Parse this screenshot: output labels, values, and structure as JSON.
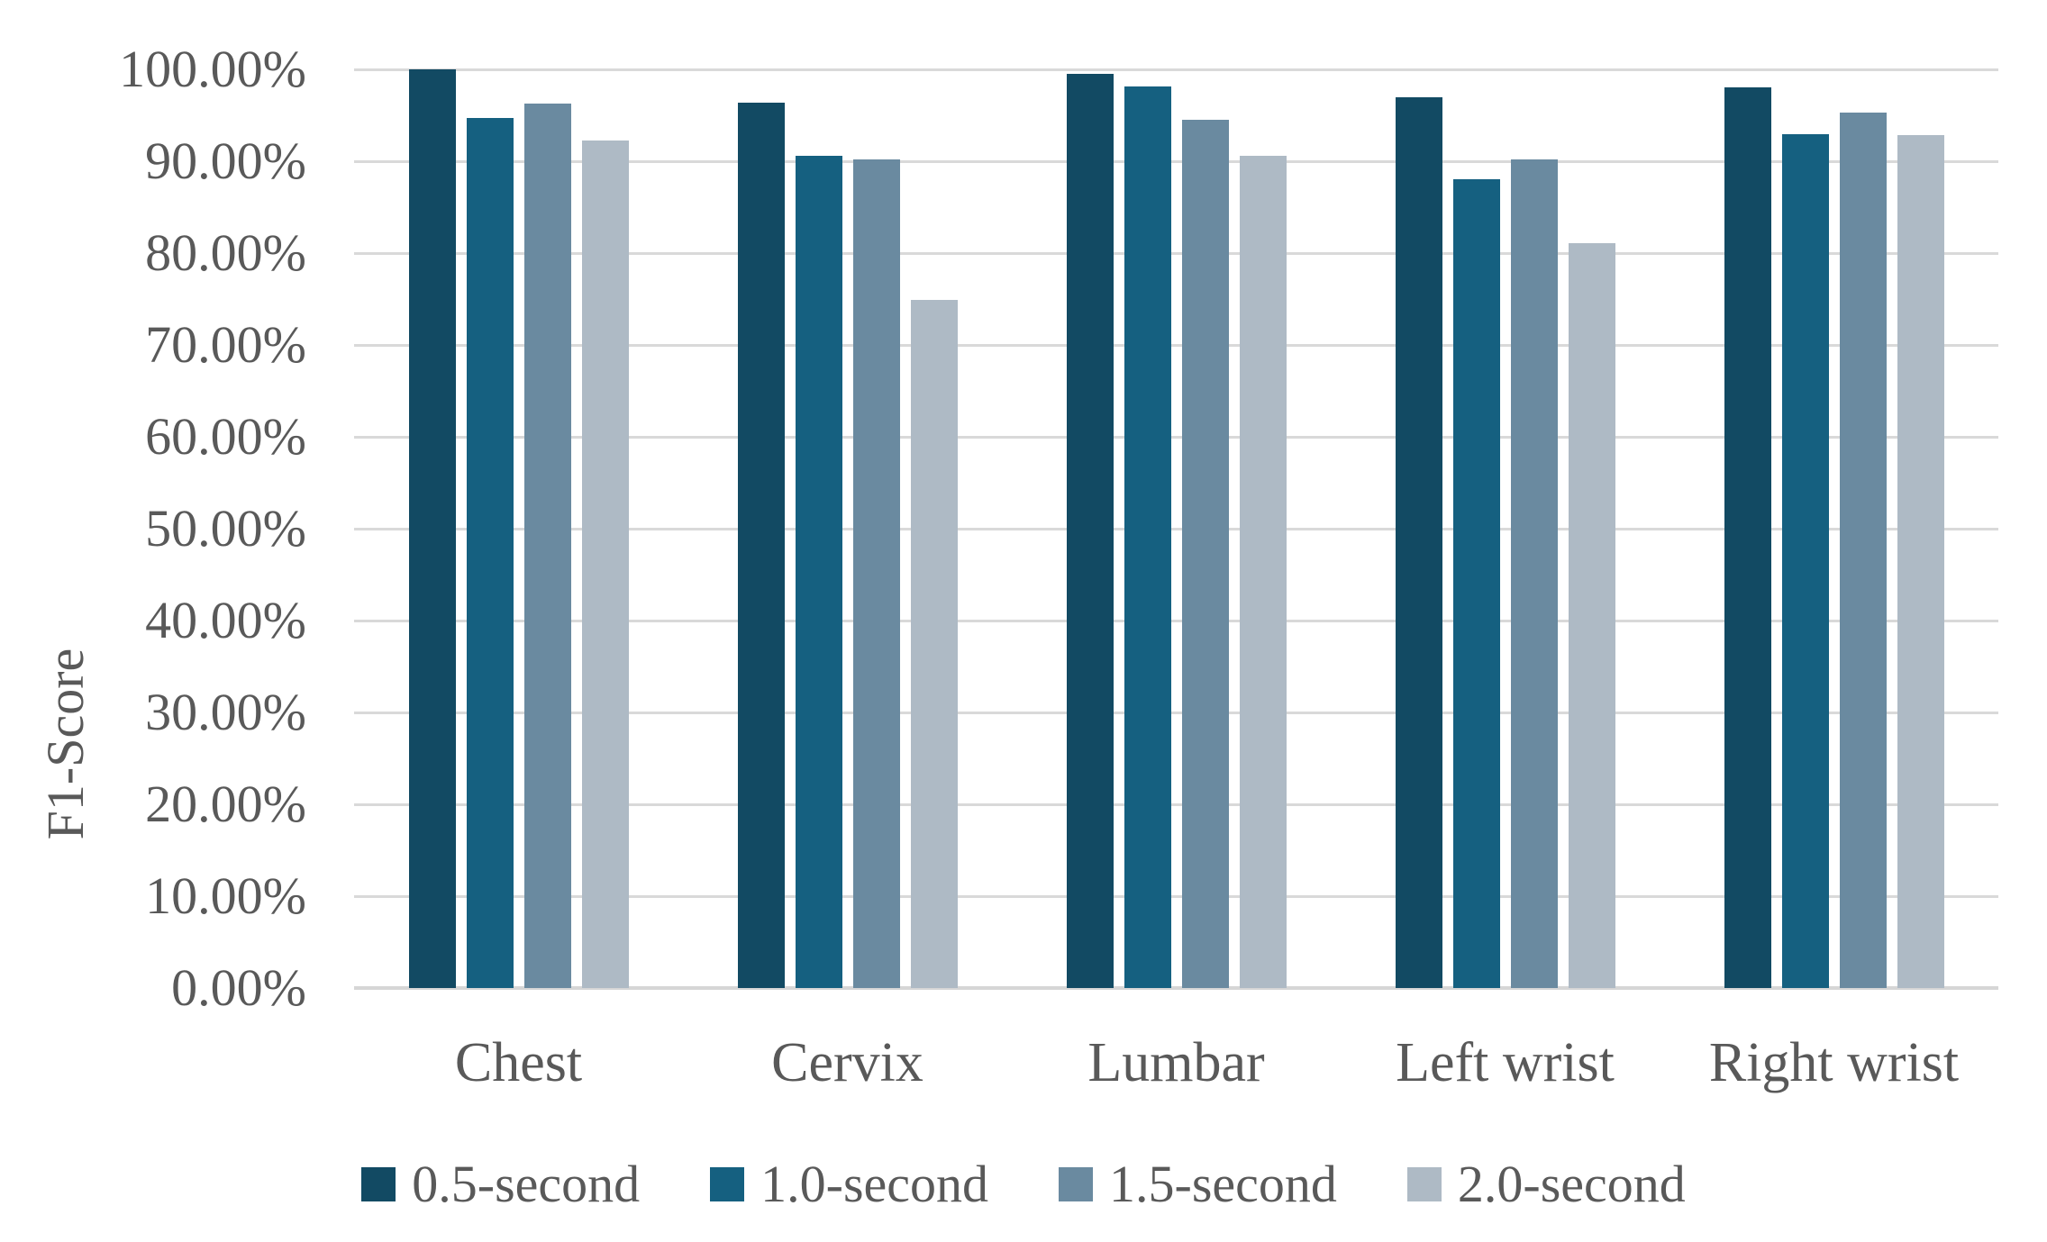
{
  "colors": {
    "text": "#595959",
    "gridline": "#D9D9D9",
    "background": "#FFFFFF"
  },
  "chart_data": {
    "type": "bar",
    "title": "",
    "xlabel": "",
    "ylabel": "F1-Score",
    "ylim": [
      0,
      100
    ],
    "ytick_step": 10,
    "grid": true,
    "legend_position": "bottom",
    "ytick_labels": [
      "0.00%",
      "10.00%",
      "20.00%",
      "30.00%",
      "40.00%",
      "50.00%",
      "60.00%",
      "70.00%",
      "80.00%",
      "90.00%",
      "100.00%"
    ],
    "categories": [
      "Chest",
      "Cervix",
      "Lumbar",
      "Left wrist",
      "Right wrist"
    ],
    "series": [
      {
        "name": "0.5-second",
        "color": "#124A63",
        "values": [
          100.0,
          96.4,
          99.5,
          97.0,
          98.0
        ]
      },
      {
        "name": "1.0-second",
        "color": "#156080",
        "values": [
          94.7,
          90.6,
          98.1,
          88.0,
          92.9
        ]
      },
      {
        "name": "1.5-second",
        "color": "#6A8AA0",
        "values": [
          96.3,
          90.2,
          94.5,
          90.2,
          95.3
        ]
      },
      {
        "name": "2.0-second",
        "color": "#AEBAC5",
        "values": [
          92.3,
          74.9,
          90.6,
          81.1,
          92.8
        ]
      }
    ]
  }
}
